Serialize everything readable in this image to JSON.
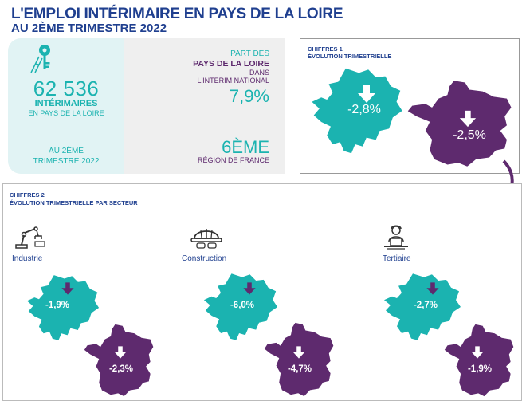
{
  "header": {
    "title": "L'EMPLOI INTÉRIMAIRE EN PAYS DE LA LOIRE",
    "subtitle": "AU 2ÈME TRIMESTRE 2022"
  },
  "kpi": {
    "icon": "key-ladder-icon",
    "workers_value": "62 536",
    "workers_label": "INTÉRIMAIRES",
    "workers_sublabel": "EN PAYS DE LA LOIRE",
    "period_line1": "AU 2ÈME",
    "period_line2": "TRIMESTRE 2022",
    "share_line1": "PART DES",
    "share_line2": "PAYS DE LA LOIRE",
    "share_line3": "DANS",
    "share_line4": "L'INTÉRIM NATIONAL",
    "share_value": "7,9%",
    "rank_value": "6ÈME",
    "rank_label": "RÉGION DE FRANCE"
  },
  "chiffres1": {
    "label": "CHIFFRES 1",
    "title": "ÉVOLUTION TRIMESTRIELLE",
    "region_value": "-2,8%",
    "france_value": "-2,5%"
  },
  "chiffres2": {
    "label": "CHIFFRES 2",
    "title": "ÉVOLUTION TRIMESTRIELLE PAR SECTEUR",
    "sectors": [
      {
        "name": "Industrie",
        "icon": "robot-arm-icon",
        "region_value": "-1,9%",
        "france_value": "-2,3%"
      },
      {
        "name": "Construction",
        "icon": "hard-hat-icon",
        "region_value": "-6,0%",
        "france_value": "-4,7%"
      },
      {
        "name": "Tertiaire",
        "icon": "office-worker-icon",
        "region_value": "-2,7%",
        "france_value": "-1,9%"
      }
    ]
  },
  "colors": {
    "teal": "#1bb3b0",
    "purple": "#5e2a6e",
    "navy": "#1f3f8f",
    "light_teal_bg": "#e1f3f4",
    "grey_bg": "#efefef"
  }
}
